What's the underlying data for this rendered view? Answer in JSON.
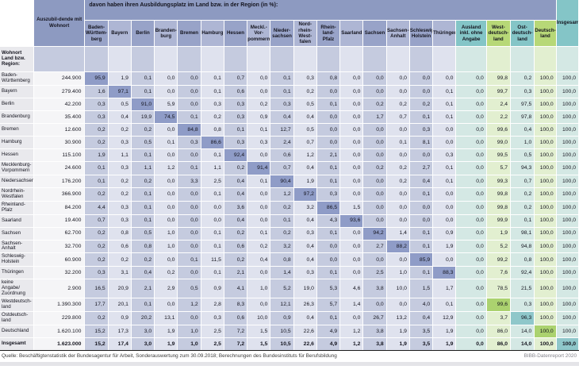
{
  "title_band": "davon haben ihren Ausbildungsplatz im Land bzw. in der Region (in %):",
  "corner": {
    "row_header": "Wohnort Land bzw. Region:",
    "auszubildende": "Auszubil-dende mit Wohnort"
  },
  "columns": [
    {
      "label": "Baden-Württem-berg",
      "style": "dark"
    },
    {
      "label": "Bayern",
      "style": "light"
    },
    {
      "label": "Berlin",
      "style": "dark"
    },
    {
      "label": "Branden-burg",
      "style": "light"
    },
    {
      "label": "Bremen",
      "style": "dark"
    },
    {
      "label": "Hamburg",
      "style": "light"
    },
    {
      "label": "Hessen",
      "style": "dark"
    },
    {
      "label": "Meckl.-Vor-pommern",
      "style": "light"
    },
    {
      "label": "Nieder-sachsen",
      "style": "dark"
    },
    {
      "label": "Nord-rhein-West-falen",
      "style": "light"
    },
    {
      "label": "Rhein-land-Pfalz",
      "style": "dark"
    },
    {
      "label": "Saarland",
      "style": "light"
    },
    {
      "label": "Sachsen",
      "style": "dark"
    },
    {
      "label": "Sachsen-Anhalt",
      "style": "light"
    },
    {
      "label": "Schleswig-Holstein",
      "style": "dark"
    },
    {
      "label": "Thüringen",
      "style": "light"
    },
    {
      "label": "Ausland inkl. ohne Angabe",
      "style": "teal"
    },
    {
      "label": "West-deutsch-land",
      "style": "green"
    },
    {
      "label": "Ost-deutsch-land",
      "style": "teal"
    },
    {
      "label": "Deutsch-land",
      "style": "green"
    },
    {
      "label": "Insgesamt",
      "style": "teal"
    }
  ],
  "rows": [
    {
      "label": "Baden-Württemberg",
      "total": "244.900",
      "highlight": 0,
      "bold": false,
      "sep": false,
      "values": [
        "95,9",
        "1,9",
        "0,1",
        "0,0",
        "0,0",
        "0,1",
        "0,7",
        "0,0",
        "0,1",
        "0,3",
        "0,8",
        "0,0",
        "0,0",
        "0,0",
        "0,0",
        "0,0",
        "0,0",
        "99,8",
        "0,2",
        "100,0",
        "100,0"
      ]
    },
    {
      "label": "Bayern",
      "total": "279.400",
      "highlight": 1,
      "bold": false,
      "sep": false,
      "values": [
        "1,6",
        "97,1",
        "0,1",
        "0,0",
        "0,0",
        "0,1",
        "0,6",
        "0,0",
        "0,1",
        "0,2",
        "0,0",
        "0,0",
        "0,0",
        "0,0",
        "0,0",
        "0,1",
        "0,0",
        "99,7",
        "0,3",
        "100,0",
        "100,0"
      ]
    },
    {
      "label": "Berlin",
      "total": "42.200",
      "highlight": 2,
      "bold": false,
      "sep": false,
      "values": [
        "0,3",
        "0,5",
        "91,0",
        "5,9",
        "0,0",
        "0,3",
        "0,3",
        "0,2",
        "0,3",
        "0,5",
        "0,1",
        "0,0",
        "0,2",
        "0,2",
        "0,2",
        "0,1",
        "0,0",
        "2,4",
        "97,5",
        "100,0",
        "100,0"
      ]
    },
    {
      "label": "Brandenburg",
      "total": "35.400",
      "highlight": 3,
      "bold": false,
      "sep": false,
      "values": [
        "0,3",
        "0,4",
        "19,9",
        "74,5",
        "0,1",
        "0,2",
        "0,3",
        "0,9",
        "0,4",
        "0,4",
        "0,0",
        "0,0",
        "1,7",
        "0,7",
        "0,1",
        "0,1",
        "0,0",
        "2,2",
        "97,8",
        "100,0",
        "100,0"
      ]
    },
    {
      "label": "Bremen",
      "total": "12.600",
      "highlight": 4,
      "bold": false,
      "sep": false,
      "values": [
        "0,2",
        "0,2",
        "0,2",
        "0,0",
        "84,8",
        "0,8",
        "0,1",
        "0,1",
        "12,7",
        "0,5",
        "0,0",
        "0,0",
        "0,0",
        "0,0",
        "0,3",
        "0,0",
        "0,0",
        "99,6",
        "0,4",
        "100,0",
        "100,0"
      ]
    },
    {
      "label": "Hamburg",
      "total": "30.900",
      "highlight": 5,
      "bold": false,
      "sep": false,
      "values": [
        "0,2",
        "0,3",
        "0,5",
        "0,1",
        "0,3",
        "86,6",
        "0,3",
        "0,3",
        "2,4",
        "0,7",
        "0,0",
        "0,0",
        "0,0",
        "0,1",
        "8,1",
        "0,0",
        "0,0",
        "99,0",
        "1,0",
        "100,0",
        "100,0"
      ]
    },
    {
      "label": "Hessen",
      "total": "115.100",
      "highlight": 6,
      "bold": false,
      "sep": false,
      "values": [
        "1,9",
        "1,1",
        "0,1",
        "0,0",
        "0,0",
        "0,1",
        "92,4",
        "0,0",
        "0,6",
        "1,2",
        "2,1",
        "0,0",
        "0,0",
        "0,0",
        "0,0",
        "0,3",
        "0,0",
        "99,5",
        "0,5",
        "100,0",
        "100,0"
      ]
    },
    {
      "label": "Mecklenburg-Vorpommern",
      "total": "24.600",
      "highlight": 7,
      "bold": false,
      "sep": false,
      "values": [
        "0,1",
        "0,3",
        "1,1",
        "1,2",
        "0,1",
        "1,1",
        "0,2",
        "91,4",
        "0,7",
        "0,4",
        "0,1",
        "0,0",
        "0,2",
        "0,2",
        "2,7",
        "0,1",
        "0,0",
        "5,7",
        "94,3",
        "100,0",
        "100,0"
      ]
    },
    {
      "label": "Niedersachsen",
      "total": "176.200",
      "highlight": 8,
      "bold": false,
      "sep": false,
      "values": [
        "0,1",
        "0,2",
        "0,2",
        "0,0",
        "3,3",
        "2,5",
        "0,4",
        "0,1",
        "90,4",
        "1,9",
        "0,1",
        "0,0",
        "0,0",
        "0,2",
        "0,4",
        "0,1",
        "0,0",
        "99,3",
        "0,7",
        "100,0",
        "100,0"
      ]
    },
    {
      "label": "Nordrhein-Westfalen",
      "total": "366.900",
      "highlight": 9,
      "bold": false,
      "sep": false,
      "values": [
        "0,2",
        "0,2",
        "0,1",
        "0,0",
        "0,0",
        "0,1",
        "0,4",
        "0,0",
        "1,2",
        "97,2",
        "0,3",
        "0,0",
        "0,0",
        "0,0",
        "0,1",
        "0,0",
        "0,0",
        "99,8",
        "0,2",
        "100,0",
        "100,0"
      ]
    },
    {
      "label": "Rheinland-Pfalz",
      "total": "84.200",
      "highlight": 10,
      "bold": false,
      "sep": false,
      "values": [
        "4,4",
        "0,3",
        "0,1",
        "0,0",
        "0,0",
        "0,0",
        "3,6",
        "0,0",
        "0,2",
        "3,2",
        "86,5",
        "1,5",
        "0,0",
        "0,0",
        "0,0",
        "0,0",
        "0,0",
        "99,8",
        "0,2",
        "100,0",
        "100,0"
      ]
    },
    {
      "label": "Saarland",
      "total": "19.400",
      "highlight": 11,
      "bold": false,
      "sep": false,
      "values": [
        "0,7",
        "0,3",
        "0,1",
        "0,0",
        "0,0",
        "0,0",
        "0,4",
        "0,0",
        "0,1",
        "0,4",
        "4,3",
        "93,6",
        "0,0",
        "0,0",
        "0,0",
        "0,0",
        "0,0",
        "99,9",
        "0,1",
        "100,0",
        "100,0"
      ]
    },
    {
      "label": "Sachsen",
      "total": "62.700",
      "highlight": 12,
      "bold": false,
      "sep": false,
      "values": [
        "0,2",
        "0,8",
        "0,5",
        "1,0",
        "0,0",
        "0,1",
        "0,2",
        "0,1",
        "0,2",
        "0,3",
        "0,1",
        "0,0",
        "94,2",
        "1,4",
        "0,1",
        "0,9",
        "0,0",
        "1,9",
        "98,1",
        "100,0",
        "100,0"
      ]
    },
    {
      "label": "Sachsen-Anhalt",
      "total": "32.700",
      "highlight": 13,
      "bold": false,
      "sep": false,
      "values": [
        "0,2",
        "0,6",
        "0,8",
        "1,0",
        "0,0",
        "0,1",
        "0,6",
        "0,2",
        "3,2",
        "0,4",
        "0,0",
        "0,0",
        "2,7",
        "88,2",
        "0,1",
        "1,9",
        "0,0",
        "5,2",
        "94,8",
        "100,0",
        "100,0"
      ]
    },
    {
      "label": "Schleswig-Holstein",
      "total": "60.900",
      "highlight": 14,
      "bold": false,
      "sep": false,
      "values": [
        "0,2",
        "0,2",
        "0,2",
        "0,0",
        "0,1",
        "11,5",
        "0,2",
        "0,4",
        "0,8",
        "0,4",
        "0,0",
        "0,0",
        "0,0",
        "0,0",
        "85,9",
        "0,0",
        "0,0",
        "99,2",
        "0,8",
        "100,0",
        "100,0"
      ]
    },
    {
      "label": "Thüringen",
      "total": "32.200",
      "highlight": 15,
      "bold": false,
      "sep": false,
      "values": [
        "0,3",
        "3,1",
        "0,4",
        "0,2",
        "0,0",
        "0,1",
        "2,1",
        "0,0",
        "1,4",
        "0,3",
        "0,1",
        "0,0",
        "2,5",
        "1,0",
        "0,1",
        "88,3",
        "0,0",
        "7,6",
        "92,4",
        "100,0",
        "100,0"
      ]
    },
    {
      "label": "keine Angabe/​Zuordnung",
      "total": "2.900",
      "highlight": -1,
      "bold": false,
      "sep": true,
      "values": [
        "16,5",
        "20,9",
        "2,1",
        "2,9",
        "0,5",
        "0,9",
        "4,1",
        "1,0",
        "5,2",
        "19,0",
        "5,3",
        "4,6",
        "3,8",
        "10,0",
        "1,5",
        "1,7",
        "0,0",
        "78,5",
        "21,5",
        "100,0",
        "100,0"
      ]
    },
    {
      "label": "Westdeutsch-land",
      "total": "1.390.300",
      "highlight": 17,
      "bold": false,
      "sep": true,
      "values": [
        "17,7",
        "20,1",
        "0,1",
        "0,0",
        "1,2",
        "2,8",
        "8,3",
        "0,0",
        "12,1",
        "26,3",
        "5,7",
        "1,4",
        "0,0",
        "0,0",
        "4,0",
        "0,1",
        "0,0",
        "99,6",
        "0,3",
        "100,0",
        "100,0"
      ]
    },
    {
      "label": "Ostdeutsch-land",
      "total": "229.800",
      "highlight": 18,
      "bold": false,
      "sep": false,
      "values": [
        "0,2",
        "0,9",
        "20,2",
        "13,1",
        "0,0",
        "0,3",
        "0,6",
        "10,0",
        "0,9",
        "0,4",
        "0,1",
        "0,0",
        "26,7",
        "13,2",
        "0,4",
        "12,9",
        "0,0",
        "3,7",
        "96,3",
        "100,0",
        "100,0"
      ]
    },
    {
      "label": "Deutschland",
      "total": "1.620.100",
      "highlight": 19,
      "bold": false,
      "sep": false,
      "values": [
        "15,2",
        "17,3",
        "3,0",
        "1,9",
        "1,0",
        "2,5",
        "7,2",
        "1,5",
        "10,5",
        "22,6",
        "4,9",
        "1,2",
        "3,8",
        "1,9",
        "3,5",
        "1,9",
        "0,0",
        "86,0",
        "14,0",
        "100,0",
        "100,0"
      ]
    },
    {
      "label": "Insgesamt",
      "total": "1.623.000",
      "highlight": 20,
      "bold": true,
      "sep": false,
      "values": [
        "15,2",
        "17,4",
        "3,0",
        "1,9",
        "1,0",
        "2,5",
        "7,2",
        "1,5",
        "10,5",
        "22,6",
        "4,9",
        "1,2",
        "3,8",
        "1,9",
        "3,5",
        "1,9",
        "0,0",
        "86,0",
        "14,0",
        "100,0",
        "100,0"
      ]
    }
  ],
  "footer": {
    "source": "Quelle: Beschäftigtenstatistik der Bundesagentur für Arbeit, Sonderauswertung zum 30.09.2018; Berechnungen des Bundesinstituts für Berufsbildung",
    "report": "BIBB-Datenreport 2020"
  },
  "colors": {
    "band": "#8d9ac1",
    "headerDark": "#98a3c8",
    "headerLight": "#aeb6d4",
    "headerTeal": "#84c5c7",
    "headerGreen": "#b7d877",
    "cellDark": "#c5cbdf",
    "cellLight": "#dfe2ee",
    "cellTeal": "#d4e8e4",
    "cellGreen": "#e2efd0",
    "hlBlue": "#8f9cc7",
    "hlTeal": "#8fc7ca",
    "hlGreen": "#abd26f",
    "labelBg": "#e9e9ed",
    "totalBg": "#f5f5f7"
  }
}
